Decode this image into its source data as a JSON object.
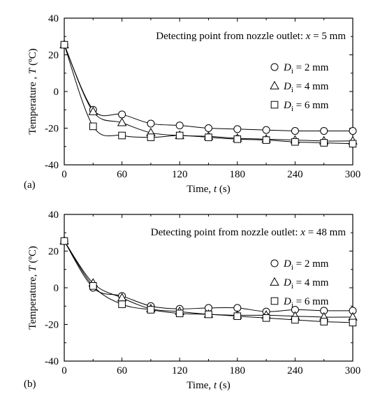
{
  "chart_data": [
    {
      "type": "scatter",
      "panel_label": "(a)",
      "annotation": "Detecting point from nozzle outlet: x = 5 mm",
      "annotation_parts": {
        "prefix": "Detecting point from nozzle outlet: ",
        "var": "x",
        "suffix": " = 5 mm"
      },
      "ylabel": "Temperature , T (ºC)",
      "ylabel_parts": {
        "prefix": "Temperature , ",
        "var": "T",
        "suffix": " (ºC)"
      },
      "xlabel": "Time, t (s)",
      "xlabel_parts": {
        "prefix": "Time, ",
        "var": "t",
        "suffix": " (s)"
      },
      "xlim": [
        0,
        300
      ],
      "ylim": [
        -40,
        40
      ],
      "xticks": [
        "0",
        "60",
        "120",
        "180",
        "240",
        "300"
      ],
      "yticks": [
        "40",
        "20",
        "0",
        "-20",
        "-40"
      ],
      "legend_position": "right",
      "series": [
        {
          "name": "Di = 2 mm",
          "legend_suffix": " = 2 mm",
          "marker": "circle",
          "x": [
            0,
            30,
            60,
            90,
            120,
            150,
            180,
            210,
            240,
            270,
            300
          ],
          "y": [
            25.5,
            -10,
            -12.5,
            -17.5,
            -18.5,
            -20,
            -20.5,
            -21,
            -21.5,
            -21.5,
            -21.5
          ]
        },
        {
          "name": "Di = 4 mm",
          "legend_suffix": " = 4 mm",
          "marker": "triangle",
          "x": [
            0,
            30,
            60,
            90,
            120,
            150,
            180,
            210,
            240,
            270,
            300
          ],
          "y": [
            25.5,
            -11,
            -17,
            -22.5,
            -24,
            -24.5,
            -25.5,
            -26,
            -26.5,
            -27,
            -27
          ]
        },
        {
          "name": "Di = 6 mm",
          "legend_suffix": " = 6 mm",
          "marker": "square",
          "x": [
            0,
            30,
            60,
            90,
            120,
            150,
            180,
            210,
            240,
            270,
            300
          ],
          "y": [
            25.5,
            -19,
            -24,
            -25,
            -24,
            -25,
            -26,
            -26.5,
            -27.5,
            -28,
            -28.5
          ]
        }
      ]
    },
    {
      "type": "scatter",
      "panel_label": "(b)",
      "annotation": "Detecting point from nozzle outlet: x = 48 mm",
      "annotation_parts": {
        "prefix": "Detecting point from nozzle outlet: ",
        "var": "x",
        "suffix": " = 48 mm"
      },
      "ylabel": "Temperature, T (ºC)",
      "ylabel_parts": {
        "prefix": "Temperature, ",
        "var": "T",
        "suffix": " (ºC)"
      },
      "xlabel": "Time, t (s)",
      "xlabel_parts": {
        "prefix": "Time, ",
        "var": "t",
        "suffix": " (s)"
      },
      "xlim": [
        0,
        300
      ],
      "ylim": [
        -40,
        40
      ],
      "xticks": [
        "0",
        "60",
        "120",
        "180",
        "240",
        "300"
      ],
      "yticks": [
        "40",
        "20",
        "0",
        "-20",
        "-40"
      ],
      "legend_position": "right",
      "series": [
        {
          "name": "Di = 2 mm",
          "legend_suffix": " = 2 mm",
          "marker": "circle",
          "x": [
            0,
            30,
            60,
            90,
            120,
            150,
            180,
            210,
            240,
            270,
            300
          ],
          "y": [
            25.5,
            0,
            -4.5,
            -10,
            -11.5,
            -11,
            -11,
            -13,
            -12,
            -12.5,
            -12.5
          ]
        },
        {
          "name": "Di = 4 mm",
          "legend_suffix": " = 4 mm",
          "marker": "triangle",
          "x": [
            0,
            30,
            60,
            90,
            120,
            150,
            180,
            210,
            240,
            270,
            300
          ],
          "y": [
            25.5,
            2.5,
            -5.5,
            -11.5,
            -13,
            -14.5,
            -15,
            -15,
            -15.5,
            -16,
            -16
          ]
        },
        {
          "name": "Di = 6 mm",
          "legend_suffix": " = 6 mm",
          "marker": "square",
          "x": [
            0,
            30,
            60,
            90,
            120,
            150,
            180,
            210,
            240,
            270,
            300
          ],
          "y": [
            25.5,
            1,
            -9,
            -12,
            -14,
            -14.5,
            -15.5,
            -16.5,
            -17.5,
            -18.5,
            -19
          ]
        }
      ]
    }
  ]
}
